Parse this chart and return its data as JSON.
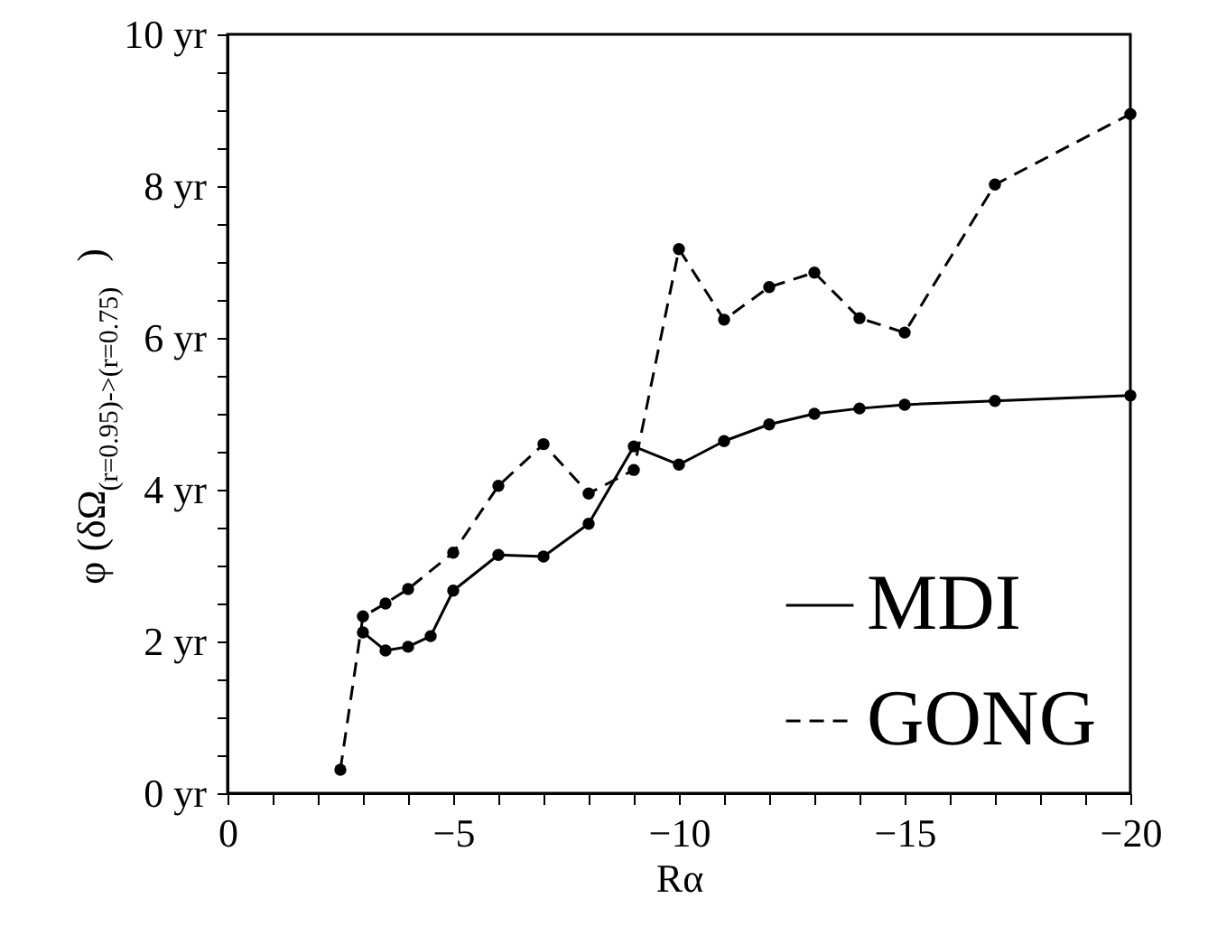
{
  "chart_data": {
    "type": "line",
    "xlabel": "Rα",
    "ylabel": "φ (δΩ$_{(r=0.95)->(r=0.75)}$)",
    "xlim": [
      0,
      -20
    ],
    "ylim": [
      0,
      10
    ],
    "xticks": [
      {
        "value": 0,
        "label": "0"
      },
      {
        "value": -1,
        "label": null
      },
      {
        "value": -2,
        "label": null
      },
      {
        "value": -3,
        "label": null
      },
      {
        "value": -4,
        "label": null
      },
      {
        "value": -5,
        "label": "−5"
      },
      {
        "value": -6,
        "label": null
      },
      {
        "value": -7,
        "label": null
      },
      {
        "value": -8,
        "label": null
      },
      {
        "value": -9,
        "label": null
      },
      {
        "value": -10,
        "label": "−10"
      },
      {
        "value": -11,
        "label": null
      },
      {
        "value": -12,
        "label": null
      },
      {
        "value": -13,
        "label": null
      },
      {
        "value": -14,
        "label": null
      },
      {
        "value": -15,
        "label": "−15"
      },
      {
        "value": -16,
        "label": null
      },
      {
        "value": -17,
        "label": null
      },
      {
        "value": -18,
        "label": null
      },
      {
        "value": -19,
        "label": null
      },
      {
        "value": -20,
        "label": "−20"
      }
    ],
    "yticks": [
      {
        "value": 0,
        "label": "0 yr"
      },
      {
        "value": 0.5,
        "label": null
      },
      {
        "value": 1,
        "label": null
      },
      {
        "value": 1.5,
        "label": null
      },
      {
        "value": 2,
        "label": "2 yr"
      },
      {
        "value": 2.5,
        "label": null
      },
      {
        "value": 3,
        "label": null
      },
      {
        "value": 3.5,
        "label": null
      },
      {
        "value": 4,
        "label": "4 yr"
      },
      {
        "value": 4.5,
        "label": null
      },
      {
        "value": 5,
        "label": null
      },
      {
        "value": 5.5,
        "label": null
      },
      {
        "value": 6,
        "label": "6 yr"
      },
      {
        "value": 6.5,
        "label": null
      },
      {
        "value": 7,
        "label": null
      },
      {
        "value": 7.5,
        "label": null
      },
      {
        "value": 8,
        "label": "8 yr"
      },
      {
        "value": 8.5,
        "label": null
      },
      {
        "value": 9,
        "label": null
      },
      {
        "value": 9.5,
        "label": null
      },
      {
        "value": 10,
        "label": "10 yr"
      }
    ],
    "grid": false,
    "legend": "bottom right",
    "marker": "circle",
    "series": [
      {
        "name": "MDI",
        "color": "#000000",
        "line_style": "solid",
        "x": [
          -3,
          -3.5,
          -4,
          -4.5,
          -5,
          -6,
          -7,
          -8,
          -9,
          -10,
          -11,
          -12,
          -13,
          -14,
          -15,
          -17,
          -20
        ],
        "values": [
          2.12,
          1.88,
          1.93,
          2.07,
          2.67,
          3.14,
          3.12,
          3.55,
          4.57,
          4.33,
          4.64,
          4.86,
          5.0,
          5.07,
          5.12,
          5.17,
          5.24
        ]
      },
      {
        "name": "GONG",
        "color": "#000000",
        "line_style": "dashed",
        "x": [
          -2.5,
          -3,
          -3.5,
          -4,
          -5,
          -6,
          -7,
          -8,
          -9,
          -10,
          -11,
          -12,
          -13,
          -14,
          -15,
          -17,
          -20
        ],
        "values": [
          0.31,
          2.33,
          2.5,
          2.69,
          3.17,
          4.05,
          4.6,
          3.95,
          4.26,
          7.17,
          6.24,
          6.67,
          6.86,
          6.26,
          6.07,
          8.02,
          8.95
        ]
      }
    ]
  }
}
